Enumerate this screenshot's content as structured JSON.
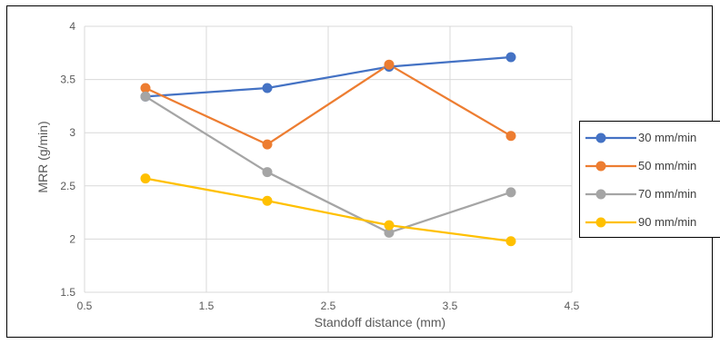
{
  "chart_data": {
    "type": "line",
    "xlabel": "Standoff distance (mm)",
    "ylabel": "MRR (g/min)",
    "xlim": [
      0.5,
      4.5
    ],
    "ylim": [
      1.5,
      4
    ],
    "x_ticks": [
      "0.5",
      "1.5",
      "2.5",
      "3.5",
      "4.5"
    ],
    "x_tick_values": [
      0.5,
      1.5,
      2.5,
      3.5,
      4.5
    ],
    "x_gridlines": [
      0.5,
      1.5,
      2.5,
      3.5,
      4.5
    ],
    "y_ticks": [
      "1.5",
      "2",
      "2.5",
      "3",
      "3.5",
      "4"
    ],
    "y_tick_values": [
      1.5,
      2,
      2.5,
      3,
      3.5,
      4
    ],
    "grid": true,
    "legend_position": "right",
    "x": [
      1,
      2,
      3,
      4
    ],
    "series": [
      {
        "name": "30 mm/min",
        "color": "#4472C4",
        "values": [
          3.34,
          3.42,
          3.62,
          3.71
        ]
      },
      {
        "name": "50 mm/min",
        "color": "#ED7D31",
        "values": [
          3.42,
          2.89,
          3.64,
          2.97
        ]
      },
      {
        "name": "70 mm/min",
        "color": "#A5A5A5",
        "values": [
          3.34,
          2.63,
          2.06,
          2.44
        ]
      },
      {
        "name": "90 mm/min",
        "color": "#FFC000",
        "values": [
          2.57,
          2.36,
          2.13,
          1.98
        ]
      }
    ]
  }
}
